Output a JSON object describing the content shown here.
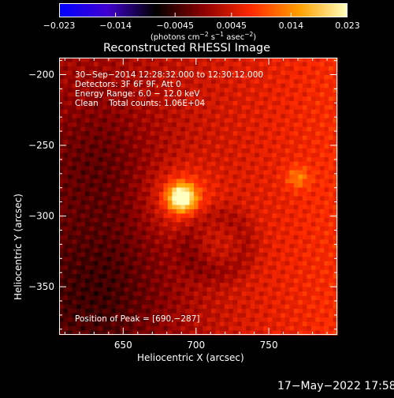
{
  "chart_data": {
    "type": "heatmap",
    "title": "Reconstructed RHESSI Image",
    "xlabel": "Heliocentric X (arcsec)",
    "ylabel": "Heliocentric Y (arcsec)",
    "xlim": [
      606,
      797
    ],
    "ylim": [
      -384,
      -188
    ],
    "x_ticks": [
      "650",
      "700",
      "750"
    ],
    "x_tick_values": [
      650,
      700,
      750
    ],
    "y_ticks": [
      "−200",
      "−250",
      "−300",
      "−350"
    ],
    "y_tick_values": [
      -200,
      -250,
      -300,
      -350
    ],
    "colorbar": {
      "min": -0.023,
      "max": 0.023,
      "ticks": [
        "−0.023",
        "−0.014",
        "−0.0045",
        "0.0045",
        "0.014",
        "0.023"
      ],
      "tick_values": [
        -0.023,
        -0.014,
        -0.0045,
        0.0045,
        0.014,
        0.023
      ],
      "unit_parts": [
        "(photons cm",
        "−2",
        " s",
        "−1",
        " asec",
        "−2",
        ")"
      ],
      "colormap": [
        "#0000ff",
        "#4000d0",
        "#000000",
        "#8c0000",
        "#ff2a00",
        "#ffa000",
        "#ffffc0"
      ]
    },
    "info_lines": [
      "30−Sep−2014 12:28:32.000 to 12:30:12.000",
      "Detectors: 3F 6F 9F, Att 0",
      "Energy Range: 6.0 − 12.0 keV",
      "Clean    Total counts: 1.06E+04"
    ],
    "peak_label": "Position of Peak = [690,−287]",
    "peak": {
      "x": 690,
      "y": -287
    },
    "secondary_source": {
      "x": 770,
      "y": -273
    },
    "timestamp": "17−May−2022 17:58"
  }
}
